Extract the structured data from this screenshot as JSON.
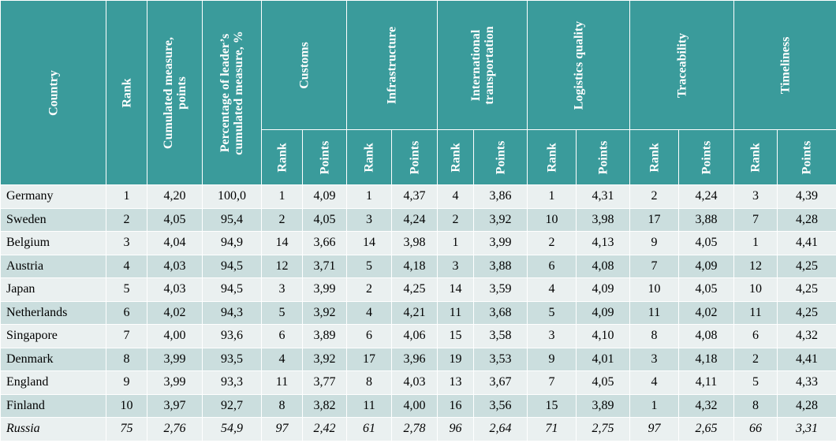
{
  "header": {
    "country": "Country",
    "rank": "Rank",
    "cumulated": "Cumulated measure, points",
    "percentage": "Percentage of leader’s cumulated measure, %",
    "groups": [
      {
        "label": "Customs"
      },
      {
        "label": "Infrastructure"
      },
      {
        "label": "International transportation"
      },
      {
        "label": "Logistics quality"
      },
      {
        "label": "Traceability"
      },
      {
        "label": "Timeliness"
      }
    ],
    "sub_rank": "Rank",
    "sub_points": "Points"
  },
  "rows": [
    {
      "country": "Germany",
      "rank": "1",
      "cumulated": "4,20",
      "percentage": "100,0",
      "values": [
        "1",
        "4,09",
        "1",
        "4,37",
        "4",
        "3,86",
        "1",
        "4,31",
        "2",
        "4,24",
        "3",
        "4,39"
      ]
    },
    {
      "country": "Sweden",
      "rank": "2",
      "cumulated": "4,05",
      "percentage": "95,4",
      "values": [
        "2",
        "4,05",
        "3",
        "4,24",
        "2",
        "3,92",
        "10",
        "3,98",
        "17",
        "3,88",
        "7",
        "4,28"
      ]
    },
    {
      "country": "Belgium",
      "rank": "3",
      "cumulated": "4,04",
      "percentage": "94,9",
      "values": [
        "14",
        "3,66",
        "14",
        "3,98",
        "1",
        "3,99",
        "2",
        "4,13",
        "9",
        "4,05",
        "1",
        "4,41"
      ]
    },
    {
      "country": "Austria",
      "rank": "4",
      "cumulated": "4,03",
      "percentage": "94,5",
      "values": [
        "12",
        "3,71",
        "5",
        "4,18",
        "3",
        "3,88",
        "6",
        "4,08",
        "7",
        "4,09",
        "12",
        "4,25"
      ]
    },
    {
      "country": "Japan",
      "rank": "5",
      "cumulated": "4,03",
      "percentage": "94,5",
      "values": [
        "3",
        "3,99",
        "2",
        "4,25",
        "14",
        "3,59",
        "4",
        "4,09",
        "10",
        "4,05",
        "10",
        "4,25"
      ]
    },
    {
      "country": "Netherlands",
      "rank": "6",
      "cumulated": "4,02",
      "percentage": "94,3",
      "values": [
        "5",
        "3,92",
        "4",
        "4,21",
        "11",
        "3,68",
        "5",
        "4,09",
        "11",
        "4,02",
        "11",
        "4,25"
      ]
    },
    {
      "country": "Singapore",
      "rank": "7",
      "cumulated": "4,00",
      "percentage": "93,6",
      "values": [
        "6",
        "3,89",
        "6",
        "4,06",
        "15",
        "3,58",
        "3",
        "4,10",
        "8",
        "4,08",
        "6",
        "4,32"
      ]
    },
    {
      "country": "Denmark",
      "rank": "8",
      "cumulated": "3,99",
      "percentage": "93,5",
      "values": [
        "4",
        "3,92",
        "17",
        "3,96",
        "19",
        "3,53",
        "9",
        "4,01",
        "3",
        "4,18",
        "2",
        "4,41"
      ]
    },
    {
      "country": "England",
      "rank": "9",
      "cumulated": "3,99",
      "percentage": "93,3",
      "values": [
        "11",
        "3,77",
        "8",
        "4,03",
        "13",
        "3,67",
        "7",
        "4,05",
        "4",
        "4,11",
        "5",
        "4,33"
      ]
    },
    {
      "country": "Finland",
      "rank": "10",
      "cumulated": "3,97",
      "percentage": "92,7",
      "values": [
        "8",
        "3,82",
        "11",
        "4,00",
        "16",
        "3,56",
        "15",
        "3,89",
        "1",
        "4,32",
        "8",
        "4,28"
      ]
    },
    {
      "country": "Russia",
      "rank": "75",
      "cumulated": "2,76",
      "percentage": "54,9",
      "values": [
        "97",
        "2,42",
        "61",
        "2,78",
        "96",
        "2,64",
        "71",
        "2,75",
        "97",
        "2,65",
        "66",
        "3,31"
      ]
    }
  ]
}
